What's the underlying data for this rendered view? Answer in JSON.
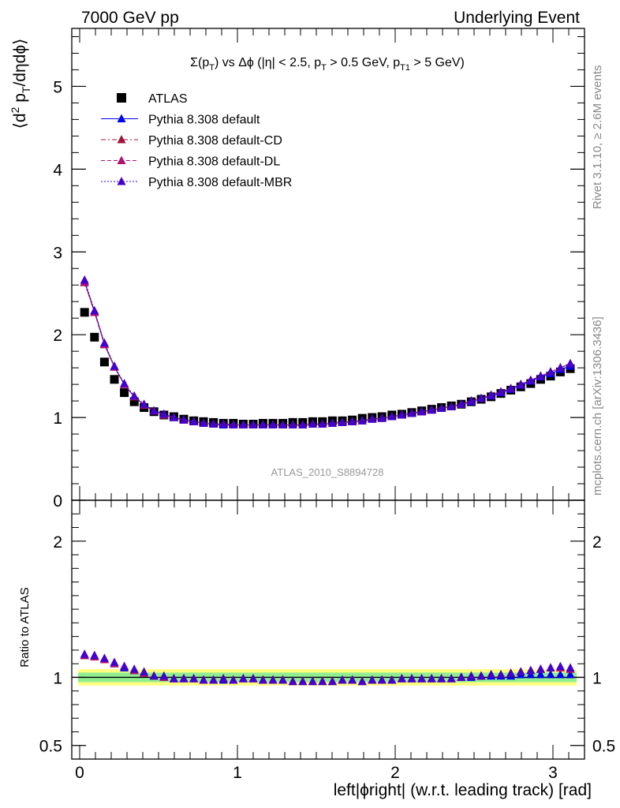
{
  "header": {
    "left": "7000 GeV pp",
    "right": "Underlying Event"
  },
  "side_labels": {
    "rivet": "Rivet 3.1.10, ≥ 2.6M events",
    "mcplots": "mcplots.cern.ch [arXiv:1306.3436]"
  },
  "watermark": "ATLAS_2010_S8894728",
  "chart_data": [
    {
      "type": "scatter",
      "title": "Σ(p_T) vs Δφ (|η| < 2.5, p_T > 0.5 GeV, p_T1 > 5 GeV)",
      "ylabel": "⟨d² p_T/dηdφ⟩",
      "xlabel": "left|ϕright| (w.r.t. leading track) [rad]",
      "xlim": [
        -0.05,
        3.2
      ],
      "ylim": [
        0,
        5.7
      ],
      "yticks": [
        0,
        1,
        2,
        3,
        4,
        5
      ],
      "xticks": [
        0,
        1,
        2,
        3
      ],
      "legend_position": "top-left",
      "x": [
        0.031,
        0.094,
        0.157,
        0.22,
        0.283,
        0.346,
        0.408,
        0.471,
        0.534,
        0.597,
        0.66,
        0.723,
        0.785,
        0.848,
        0.911,
        0.974,
        1.037,
        1.1,
        1.162,
        1.225,
        1.288,
        1.351,
        1.414,
        1.477,
        1.539,
        1.602,
        1.665,
        1.728,
        1.791,
        1.854,
        1.916,
        1.979,
        2.042,
        2.105,
        2.168,
        2.231,
        2.293,
        2.356,
        2.419,
        2.482,
        2.545,
        2.608,
        2.67,
        2.733,
        2.796,
        2.859,
        2.922,
        2.985,
        3.047,
        3.11
      ],
      "series": [
        {
          "name": "ATLAS",
          "color": "#000000",
          "marker": "square",
          "line": "none",
          "values": [
            2.27,
            1.97,
            1.67,
            1.46,
            1.3,
            1.19,
            1.12,
            1.07,
            1.03,
            1.01,
            0.98,
            0.96,
            0.95,
            0.94,
            0.93,
            0.93,
            0.92,
            0.92,
            0.93,
            0.93,
            0.93,
            0.94,
            0.94,
            0.95,
            0.95,
            0.96,
            0.96,
            0.97,
            0.99,
            1.0,
            1.01,
            1.03,
            1.04,
            1.06,
            1.08,
            1.1,
            1.12,
            1.14,
            1.16,
            1.19,
            1.22,
            1.25,
            1.29,
            1.33,
            1.37,
            1.41,
            1.46,
            1.5,
            1.55,
            1.59
          ]
        },
        {
          "name": "Pythia 8.308 default",
          "color": "#0000ee",
          "marker": "triangle",
          "line": "solid",
          "values": [
            2.64,
            2.28,
            1.89,
            1.61,
            1.4,
            1.25,
            1.15,
            1.08,
            1.04,
            1.0,
            0.97,
            0.95,
            0.93,
            0.92,
            0.91,
            0.91,
            0.91,
            0.91,
            0.91,
            0.91,
            0.91,
            0.91,
            0.91,
            0.92,
            0.92,
            0.93,
            0.94,
            0.95,
            0.96,
            0.98,
            0.99,
            1.01,
            1.03,
            1.05,
            1.07,
            1.09,
            1.11,
            1.13,
            1.16,
            1.19,
            1.23,
            1.26,
            1.3,
            1.34,
            1.39,
            1.44,
            1.49,
            1.53,
            1.58,
            1.62
          ]
        },
        {
          "name": "Pythia 8.308 default-CD",
          "color": "#a0143c",
          "marker": "triangle",
          "line": "dashdot",
          "values": [
            2.63,
            2.27,
            1.88,
            1.61,
            1.4,
            1.25,
            1.15,
            1.08,
            1.03,
            1.0,
            0.97,
            0.95,
            0.93,
            0.92,
            0.92,
            0.91,
            0.91,
            0.91,
            0.91,
            0.91,
            0.91,
            0.91,
            0.91,
            0.92,
            0.92,
            0.93,
            0.94,
            0.95,
            0.96,
            0.98,
            0.99,
            1.01,
            1.03,
            1.05,
            1.07,
            1.09,
            1.11,
            1.13,
            1.16,
            1.2,
            1.23,
            1.27,
            1.31,
            1.35,
            1.4,
            1.45,
            1.5,
            1.55,
            1.6,
            1.65
          ]
        },
        {
          "name": "Pythia 8.308 default-DL",
          "color": "#b0106e",
          "marker": "triangle",
          "line": "dashed",
          "values": [
            2.63,
            2.27,
            1.88,
            1.61,
            1.4,
            1.25,
            1.15,
            1.08,
            1.03,
            1.0,
            0.97,
            0.95,
            0.93,
            0.92,
            0.92,
            0.91,
            0.91,
            0.91,
            0.91,
            0.91,
            0.91,
            0.91,
            0.91,
            0.92,
            0.92,
            0.93,
            0.94,
            0.95,
            0.96,
            0.98,
            0.99,
            1.01,
            1.03,
            1.05,
            1.07,
            1.09,
            1.11,
            1.13,
            1.16,
            1.2,
            1.23,
            1.27,
            1.31,
            1.35,
            1.4,
            1.45,
            1.5,
            1.55,
            1.6,
            1.65
          ]
        },
        {
          "name": "Pythia 8.308 default-MBR",
          "color": "#4400cc",
          "marker": "triangle",
          "line": "dotted",
          "values": [
            2.66,
            2.29,
            1.9,
            1.62,
            1.41,
            1.26,
            1.16,
            1.08,
            1.04,
            1.0,
            0.97,
            0.95,
            0.93,
            0.92,
            0.92,
            0.91,
            0.91,
            0.91,
            0.91,
            0.91,
            0.91,
            0.91,
            0.91,
            0.92,
            0.92,
            0.93,
            0.94,
            0.95,
            0.96,
            0.98,
            0.99,
            1.01,
            1.03,
            1.05,
            1.07,
            1.09,
            1.11,
            1.13,
            1.16,
            1.2,
            1.23,
            1.27,
            1.31,
            1.35,
            1.4,
            1.45,
            1.5,
            1.55,
            1.6,
            1.65
          ]
        }
      ]
    },
    {
      "type": "scatter",
      "ylabel": "Ratio to ATLAS",
      "xlabel": "left|ϕright| (w.r.t. leading track) [rad]",
      "xlim": [
        -0.05,
        3.2
      ],
      "ylim": [
        0.4,
        2.3
      ],
      "yticks": [
        0.5,
        1,
        2
      ],
      "xticks": [
        0,
        1,
        2,
        3
      ],
      "bands": {
        "green": 0.035,
        "yellow": 0.06
      },
      "x": [
        0.031,
        0.094,
        0.157,
        0.22,
        0.283,
        0.346,
        0.408,
        0.471,
        0.534,
        0.597,
        0.66,
        0.723,
        0.785,
        0.848,
        0.911,
        0.974,
        1.037,
        1.1,
        1.162,
        1.225,
        1.288,
        1.351,
        1.414,
        1.477,
        1.539,
        1.602,
        1.665,
        1.728,
        1.791,
        1.854,
        1.916,
        1.979,
        2.042,
        2.105,
        2.168,
        2.231,
        2.293,
        2.356,
        2.419,
        2.482,
        2.545,
        2.608,
        2.67,
        2.733,
        2.796,
        2.859,
        2.922,
        2.985,
        3.047,
        3.11
      ],
      "series": [
        {
          "name": "Pythia 8.308 default",
          "color": "#0000ee",
          "values": [
            1.16,
            1.16,
            1.13,
            1.1,
            1.07,
            1.05,
            1.03,
            1.01,
            1.0,
            0.99,
            0.99,
            0.99,
            0.98,
            0.98,
            0.98,
            0.98,
            0.99,
            0.99,
            0.98,
            0.98,
            0.98,
            0.97,
            0.97,
            0.97,
            0.97,
            0.97,
            0.98,
            0.98,
            0.97,
            0.98,
            0.98,
            0.98,
            0.99,
            0.99,
            0.99,
            0.99,
            0.99,
            0.99,
            1.0,
            1.0,
            1.01,
            1.01,
            1.01,
            1.01,
            1.02,
            1.02,
            1.02,
            1.02,
            1.02,
            1.02
          ]
        },
        {
          "name": "Pythia 8.308 default-CD",
          "color": "#a0143c",
          "values": [
            1.16,
            1.15,
            1.13,
            1.1,
            1.08,
            1.05,
            1.03,
            1.01,
            1.0,
            0.99,
            0.99,
            0.99,
            0.98,
            0.98,
            0.99,
            0.98,
            0.99,
            0.99,
            0.98,
            0.98,
            0.98,
            0.97,
            0.97,
            0.97,
            0.97,
            0.97,
            0.98,
            0.98,
            0.97,
            0.98,
            0.98,
            0.98,
            0.99,
            0.99,
            0.99,
            0.99,
            0.99,
            0.99,
            1.0,
            1.01,
            1.01,
            1.02,
            1.02,
            1.03,
            1.04,
            1.05,
            1.06,
            1.07,
            1.07,
            1.06
          ]
        },
        {
          "name": "Pythia 8.308 default-DL",
          "color": "#b0106e",
          "values": [
            1.16,
            1.15,
            1.13,
            1.1,
            1.08,
            1.05,
            1.03,
            1.01,
            1.0,
            0.99,
            0.99,
            0.99,
            0.98,
            0.98,
            0.99,
            0.98,
            0.99,
            0.99,
            0.98,
            0.98,
            0.98,
            0.97,
            0.97,
            0.97,
            0.97,
            0.97,
            0.98,
            0.98,
            0.97,
            0.98,
            0.98,
            0.98,
            0.99,
            0.99,
            0.99,
            0.99,
            0.99,
            0.99,
            1.0,
            1.01,
            1.01,
            1.02,
            1.02,
            1.03,
            1.04,
            1.05,
            1.06,
            1.07,
            1.07,
            1.06
          ]
        },
        {
          "name": "Pythia 8.308 default-MBR",
          "color": "#4400cc",
          "values": [
            1.17,
            1.16,
            1.14,
            1.11,
            1.08,
            1.06,
            1.04,
            1.01,
            1.01,
            0.99,
            0.99,
            0.99,
            0.98,
            0.98,
            0.99,
            0.98,
            0.99,
            0.99,
            0.98,
            0.98,
            0.98,
            0.97,
            0.97,
            0.97,
            0.97,
            0.97,
            0.98,
            0.98,
            0.97,
            0.98,
            0.98,
            0.98,
            0.99,
            0.99,
            0.99,
            0.99,
            0.99,
            0.99,
            1.0,
            1.01,
            1.01,
            1.02,
            1.02,
            1.03,
            1.04,
            1.05,
            1.06,
            1.07,
            1.08,
            1.07
          ]
        }
      ]
    }
  ]
}
